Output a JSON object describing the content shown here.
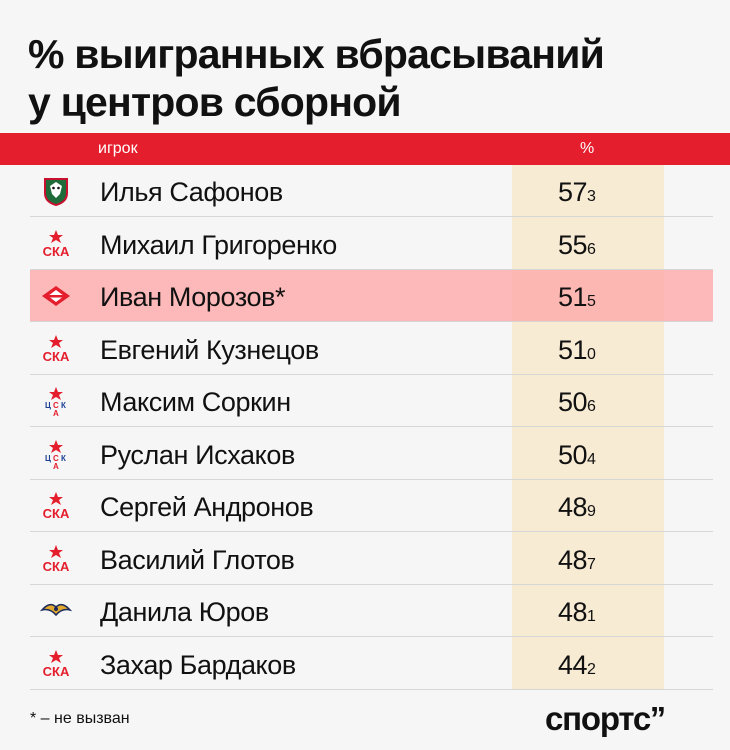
{
  "title_line1": "% выигранных вбрасываний",
  "title_line2": "у центров сборной",
  "header": {
    "player": "игрок",
    "pct": "%"
  },
  "chart_data": {
    "type": "table",
    "title": "% выигранных вбрасываний у центров сборной",
    "columns": [
      "игрок",
      "%"
    ],
    "rows": [
      {
        "team_icon": "ak-bars-logo-icon",
        "name": "Илья Сафонов",
        "int": "57",
        "dec": "3",
        "value": 57.3,
        "highlight": false
      },
      {
        "team_icon": "ska-logo-icon",
        "name": "Михаил Григоренко",
        "int": "55",
        "dec": "6",
        "value": 55.6,
        "highlight": false
      },
      {
        "team_icon": "spartak-logo-icon",
        "name": "Иван Морозов*",
        "int": "51",
        "dec": "5",
        "value": 51.5,
        "highlight": true
      },
      {
        "team_icon": "ska-logo-icon",
        "name": "Евгений Кузнецов",
        "int": "51",
        "dec": "0",
        "value": 51.0,
        "highlight": false
      },
      {
        "team_icon": "cska-logo-icon",
        "name": "Максим Соркин",
        "int": "50",
        "dec": "6",
        "value": 50.6,
        "highlight": false
      },
      {
        "team_icon": "cska-logo-icon",
        "name": "Руслан Исхаков",
        "int": "50",
        "dec": "4",
        "value": 50.4,
        "highlight": false
      },
      {
        "team_icon": "ska-logo-icon",
        "name": "Сергей Андронов",
        "int": "48",
        "dec": "9",
        "value": 48.9,
        "highlight": false
      },
      {
        "team_icon": "ska-logo-icon",
        "name": "Василий Глотов",
        "int": "48",
        "dec": "7",
        "value": 48.7,
        "highlight": false
      },
      {
        "team_icon": "metallurg-logo-icon",
        "name": "Данила Юров",
        "int": "48",
        "dec": "1",
        "value": 48.1,
        "highlight": false
      },
      {
        "team_icon": "ska-logo-icon",
        "name": "Захар Бардаков",
        "int": "44",
        "dec": "2",
        "value": 44.2,
        "highlight": false
      }
    ]
  },
  "footnote": "* – не вызван",
  "brand": "спортс’’",
  "colors": {
    "header_red": "#e41e2d",
    "highlight_pink": "#ffa8a8",
    "pct_column": "#f7ebd4"
  }
}
